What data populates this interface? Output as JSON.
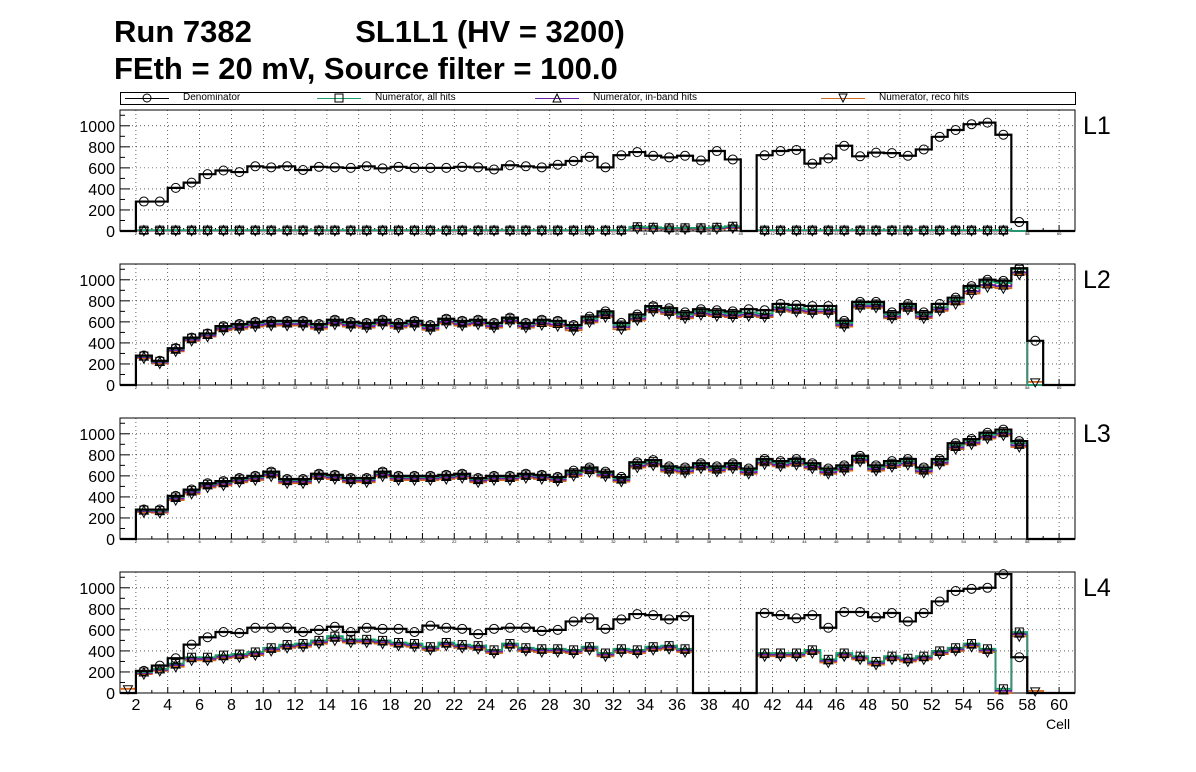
{
  "title_line1": "Run 7382            SL1L1 (HV = 3200)",
  "title_line2": "FEth = 20 mV, Source filter = 100.0",
  "colors": {
    "denominator": "#000000",
    "all_hits": "#1aa36a",
    "inband_hits": "#6a1fa8",
    "reco_hits": "#d2691e"
  },
  "chart_data": {
    "type": "line",
    "style": "step histogram with markers, 4 stacked panels",
    "xlabel": "Cell",
    "xlim": [
      1,
      61
    ],
    "x_ticks": [
      2,
      4,
      6,
      8,
      10,
      12,
      14,
      16,
      18,
      20,
      22,
      24,
      26,
      28,
      30,
      32,
      34,
      36,
      38,
      40,
      42,
      44,
      46,
      48,
      50,
      52,
      54,
      56,
      58,
      60
    ],
    "ylim": [
      0,
      1150
    ],
    "y_ticks": [
      0,
      200,
      400,
      600,
      800,
      1000
    ],
    "legend": [
      {
        "name": "Denominator",
        "marker": "circle"
      },
      {
        "name": "Numerator, all hits",
        "marker": "square"
      },
      {
        "name": "Numerator, in-band hits",
        "marker": "triangle-up"
      },
      {
        "name": "Numerator, reco hits",
        "marker": "triangle-down"
      }
    ],
    "panels": [
      {
        "label": "L1",
        "denominator": [
          0,
          280,
          280,
          410,
          460,
          540,
          575,
          560,
          615,
          605,
          615,
          580,
          610,
          605,
          600,
          615,
          595,
          610,
          600,
          600,
          600,
          610,
          605,
          585,
          625,
          615,
          605,
          630,
          665,
          705,
          605,
          720,
          750,
          715,
          700,
          715,
          670,
          760,
          680,
          0,
          720,
          760,
          770,
          640,
          690,
          810,
          710,
          745,
          740,
          715,
          775,
          895,
          960,
          1015,
          1030,
          915,
          85,
          0,
          0,
          0
        ],
        "all_hits": [
          0,
          8,
          8,
          8,
          8,
          8,
          8,
          8,
          8,
          8,
          8,
          8,
          8,
          8,
          8,
          8,
          8,
          8,
          8,
          8,
          8,
          8,
          8,
          8,
          8,
          8,
          8,
          8,
          8,
          8,
          8,
          8,
          40,
          35,
          30,
          30,
          30,
          35,
          45,
          0,
          8,
          8,
          8,
          8,
          8,
          8,
          8,
          8,
          8,
          8,
          8,
          8,
          8,
          8,
          8,
          8,
          0,
          0,
          0,
          0
        ],
        "inband_hits": [
          0,
          5,
          5,
          5,
          5,
          5,
          5,
          5,
          5,
          5,
          5,
          5,
          5,
          5,
          5,
          5,
          5,
          5,
          5,
          5,
          5,
          5,
          5,
          5,
          5,
          5,
          5,
          5,
          5,
          5,
          5,
          5,
          30,
          28,
          24,
          24,
          24,
          28,
          35,
          0,
          5,
          5,
          5,
          5,
          5,
          5,
          5,
          5,
          5,
          5,
          5,
          5,
          5,
          5,
          5,
          5,
          0,
          0,
          0,
          0
        ],
        "reco_hits": [
          0,
          3,
          3,
          3,
          3,
          3,
          3,
          3,
          3,
          3,
          3,
          3,
          3,
          3,
          3,
          3,
          3,
          3,
          3,
          3,
          3,
          3,
          3,
          3,
          3,
          3,
          3,
          3,
          3,
          3,
          3,
          3,
          22,
          20,
          18,
          18,
          18,
          20,
          28,
          0,
          3,
          3,
          3,
          3,
          3,
          3,
          3,
          3,
          3,
          3,
          3,
          3,
          3,
          3,
          3,
          3,
          0,
          0,
          0,
          0
        ]
      },
      {
        "label": "L2",
        "denominator": [
          0,
          280,
          230,
          350,
          450,
          490,
          560,
          580,
          600,
          610,
          610,
          610,
          580,
          620,
          600,
          590,
          620,
          590,
          610,
          570,
          630,
          610,
          620,
          590,
          640,
          590,
          620,
          610,
          570,
          650,
          700,
          590,
          670,
          750,
          730,
          690,
          720,
          710,
          700,
          720,
          710,
          770,
          760,
          750,
          750,
          610,
          790,
          790,
          690,
          770,
          690,
          770,
          830,
          940,
          1000,
          990,
          1110,
          420,
          0,
          0
        ],
        "all_hits": [
          0,
          275,
          225,
          345,
          445,
          485,
          550,
          570,
          590,
          600,
          600,
          600,
          570,
          610,
          590,
          580,
          610,
          580,
          600,
          560,
          620,
          600,
          610,
          580,
          630,
          580,
          610,
          600,
          560,
          630,
          680,
          570,
          650,
          740,
          710,
          670,
          700,
          690,
          680,
          690,
          680,
          740,
          730,
          720,
          720,
          590,
          770,
          770,
          670,
          750,
          670,
          740,
          810,
          920,
          980,
          970,
          1100,
          0,
          0,
          0
        ],
        "inband_hits": [
          0,
          265,
          215,
          330,
          430,
          470,
          535,
          550,
          570,
          580,
          580,
          580,
          550,
          590,
          570,
          560,
          590,
          560,
          580,
          540,
          600,
          580,
          590,
          560,
          610,
          560,
          585,
          575,
          540,
          610,
          660,
          550,
          630,
          715,
          690,
          650,
          680,
          670,
          660,
          670,
          660,
          720,
          710,
          700,
          700,
          570,
          750,
          750,
          650,
          730,
          650,
          720,
          790,
          890,
          950,
          940,
          1070,
          0,
          0,
          0
        ],
        "reco_hits": [
          0,
          255,
          205,
          320,
          420,
          460,
          520,
          535,
          555,
          565,
          565,
          565,
          535,
          575,
          555,
          545,
          575,
          545,
          565,
          525,
          585,
          565,
          575,
          545,
          595,
          545,
          570,
          560,
          520,
          595,
          645,
          530,
          615,
          700,
          675,
          635,
          665,
          655,
          645,
          655,
          645,
          705,
          695,
          685,
          685,
          555,
          735,
          735,
          635,
          715,
          635,
          705,
          770,
          870,
          930,
          920,
          1050,
          30,
          0,
          0
        ]
      },
      {
        "label": "L3",
        "denominator": [
          0,
          280,
          280,
          410,
          470,
          530,
          550,
          580,
          600,
          640,
          570,
          570,
          620,
          610,
          580,
          580,
          640,
          600,
          600,
          600,
          610,
          620,
          580,
          600,
          600,
          620,
          610,
          590,
          650,
          680,
          640,
          590,
          730,
          750,
          690,
          680,
          720,
          690,
          720,
          670,
          760,
          740,
          760,
          720,
          670,
          700,
          790,
          700,
          740,
          760,
          680,
          760,
          910,
          950,
          1010,
          1040,
          930,
          0,
          0,
          0
        ],
        "all_hits": [
          0,
          275,
          270,
          400,
          460,
          520,
          540,
          570,
          590,
          630,
          560,
          560,
          610,
          600,
          570,
          570,
          630,
          590,
          590,
          590,
          600,
          610,
          570,
          590,
          590,
          610,
          600,
          580,
          630,
          665,
          625,
          575,
          715,
          735,
          675,
          665,
          705,
          675,
          705,
          655,
          745,
          725,
          740,
          705,
          655,
          685,
          770,
          685,
          720,
          740,
          665,
          745,
          890,
          935,
          990,
          1020,
          910,
          0,
          0,
          0
        ],
        "inband_hits": [
          0,
          265,
          260,
          385,
          445,
          505,
          525,
          555,
          575,
          610,
          545,
          545,
          595,
          585,
          555,
          555,
          610,
          575,
          575,
          575,
          585,
          595,
          555,
          575,
          575,
          595,
          585,
          565,
          615,
          650,
          610,
          560,
          695,
          715,
          655,
          645,
          685,
          655,
          685,
          635,
          725,
          705,
          720,
          685,
          635,
          665,
          750,
          665,
          700,
          720,
          645,
          725,
          870,
          915,
          970,
          1000,
          890,
          0,
          0,
          0
        ],
        "reco_hits": [
          0,
          255,
          250,
          370,
          430,
          490,
          510,
          540,
          560,
          595,
          530,
          530,
          580,
          570,
          540,
          540,
          595,
          560,
          560,
          560,
          570,
          580,
          540,
          560,
          560,
          580,
          570,
          550,
          600,
          635,
          595,
          545,
          680,
          700,
          640,
          630,
          670,
          640,
          670,
          620,
          710,
          690,
          705,
          670,
          620,
          650,
          735,
          650,
          685,
          705,
          630,
          710,
          855,
          900,
          955,
          985,
          875,
          0,
          0,
          0
        ]
      },
      {
        "label": "L4",
        "denominator": [
          0,
          210,
          260,
          330,
          460,
          530,
          580,
          570,
          620,
          620,
          620,
          580,
          600,
          630,
          580,
          620,
          610,
          610,
          580,
          640,
          620,
          610,
          560,
          610,
          620,
          620,
          590,
          600,
          680,
          710,
          610,
          700,
          750,
          740,
          700,
          730,
          0,
          0,
          0,
          0,
          760,
          740,
          710,
          740,
          620,
          770,
          770,
          720,
          760,
          680,
          760,
          870,
          970,
          990,
          1000,
          1130,
          340,
          0,
          0,
          0
        ],
        "all_hits": [
          0,
          200,
          230,
          280,
          340,
          340,
          360,
          370,
          390,
          430,
          460,
          470,
          500,
          540,
          510,
          510,
          500,
          480,
          470,
          440,
          480,
          460,
          450,
          410,
          470,
          430,
          420,
          420,
          410,
          440,
          380,
          420,
          410,
          440,
          450,
          420,
          0,
          0,
          0,
          0,
          380,
          380,
          380,
          410,
          320,
          380,
          350,
          300,
          350,
          330,
          350,
          400,
          430,
          470,
          420,
          40,
          580,
          0,
          0,
          0
        ],
        "inband_hits": [
          0,
          190,
          220,
          265,
          325,
          325,
          345,
          355,
          375,
          415,
          445,
          455,
          485,
          520,
          495,
          495,
          485,
          465,
          455,
          425,
          465,
          445,
          435,
          395,
          455,
          415,
          405,
          405,
          395,
          425,
          365,
          405,
          395,
          425,
          435,
          405,
          0,
          0,
          0,
          0,
          365,
          365,
          365,
          395,
          305,
          365,
          335,
          285,
          335,
          315,
          335,
          385,
          415,
          455,
          405,
          20,
          560,
          0,
          0,
          0
        ],
        "reco_hits": [
          40,
          180,
          210,
          250,
          310,
          310,
          330,
          340,
          360,
          400,
          430,
          440,
          470,
          500,
          480,
          480,
          470,
          450,
          440,
          410,
          450,
          430,
          420,
          380,
          440,
          400,
          390,
          390,
          380,
          410,
          350,
          390,
          380,
          410,
          420,
          390,
          0,
          0,
          0,
          0,
          350,
          350,
          350,
          380,
          290,
          350,
          320,
          270,
          320,
          300,
          320,
          370,
          400,
          440,
          390,
          0,
          540,
          20,
          0,
          0
        ]
      }
    ]
  }
}
